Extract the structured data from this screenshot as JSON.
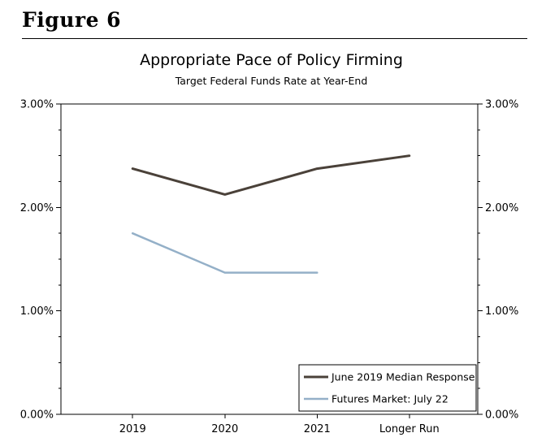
{
  "figure": {
    "title": "Figure 6"
  },
  "chart_data": {
    "type": "line",
    "title": "Appropriate Pace of Policy Firming",
    "subtitle": "Target Federal Funds Rate at Year-End",
    "categories": [
      "2019",
      "2020",
      "2021",
      "Longer Run"
    ],
    "y_axis": {
      "min": 0,
      "max": 3,
      "major_ticks": [
        {
          "value": 0,
          "label": "0.00%"
        },
        {
          "value": 1,
          "label": "1.00%"
        },
        {
          "value": 2,
          "label": "2.00%"
        },
        {
          "value": 3,
          "label": "3.00%"
        }
      ],
      "minor_tick_step": 0.25,
      "sides": [
        "left",
        "right"
      ]
    },
    "series": [
      {
        "name": "June 2019 Median Response",
        "color": "#4a4139",
        "stroke_width": 3,
        "values": [
          2.375,
          2.125,
          2.375,
          2.5
        ]
      },
      {
        "name": "Futures Market: July 22",
        "color": "#94b0c8",
        "stroke_width": 2.5,
        "values": [
          1.75,
          1.37,
          1.37,
          null
        ]
      }
    ],
    "legend": {
      "position": "bottom-right",
      "border_color": "#000000"
    },
    "grid": false,
    "plot_border_color": "#000000"
  }
}
